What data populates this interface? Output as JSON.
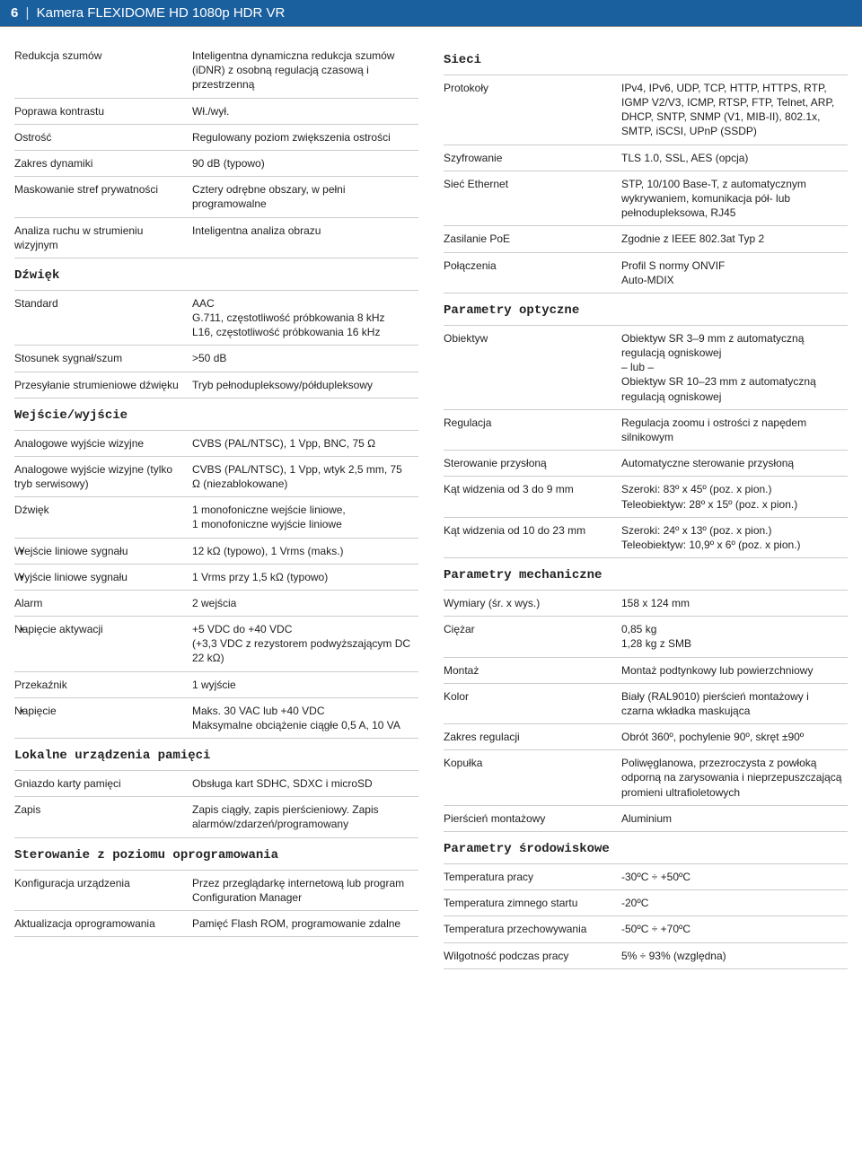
{
  "header": {
    "page": "6",
    "title": "Kamera FLEXIDOME HD 1080p HDR VR"
  },
  "left": {
    "rows1": [
      {
        "k": "Redukcja szumów",
        "v": "Inteligentna dynamiczna redukcja szumów (iDNR) z osobną regulacją czasową i przestrzenną"
      },
      {
        "k": "Poprawa kontrastu",
        "v": "Wł./wył."
      },
      {
        "k": "Ostrość",
        "v": "Regulowany poziom zwiększenia ostrości"
      },
      {
        "k": "Zakres dynamiki",
        "v": "90 dB (typowo)"
      },
      {
        "k": "Maskowanie stref prywatności",
        "v": "Cztery odrębne obszary, w pełni programowalne"
      },
      {
        "k": "Analiza ruchu w strumieniu wizyjnym",
        "v": "Inteligentna analiza obrazu"
      }
    ],
    "audio_title": "Dźwięk",
    "rows_audio": [
      {
        "k": "Standard",
        "v": "AAC\nG.711, częstotliwość próbkowania 8 kHz\nL16, częstotliwość próbkowania 16 kHz"
      },
      {
        "k": "Stosunek sygnał/szum",
        "v": ">50 dB"
      },
      {
        "k": "Przesyłanie strumieniowe dźwięku",
        "v": "Tryb pełnodupleksowy/półdupleksowy"
      }
    ],
    "io_title": "Wejście/wyjście",
    "rows_io": [
      {
        "k": "Analogowe wyjście wizyjne",
        "v": "CVBS (PAL/NTSC), 1 Vpp, BNC, 75 Ω"
      },
      {
        "k": "Analogowe wyjście wizyjne (tylko tryb serwisowy)",
        "v": "CVBS (PAL/NTSC), 1 Vpp, wtyk 2,5 mm, 75 Ω (niezablokowane)"
      },
      {
        "k": "Dźwięk",
        "v": "1 monofoniczne wejście liniowe,\n1 monofoniczne wyjście liniowe"
      },
      {
        "k": "Wejście liniowe sygnału",
        "v": "12 kΩ (typowo), 1 Vrms (maks.)",
        "sub": true
      },
      {
        "k": "Wyjście liniowe sygnału",
        "v": "1 Vrms przy 1,5 kΩ (typowo)",
        "sub": true
      },
      {
        "k": "Alarm",
        "v": "2 wejścia"
      },
      {
        "k": "Napięcie aktywacji",
        "v": "+5 VDC do +40 VDC\n(+3,3 VDC z rezystorem podwyższającym DC 22 kΩ)",
        "sub": true
      },
      {
        "k": "Przekaźnik",
        "v": "1 wyjście"
      },
      {
        "k": "Napięcie",
        "v": "Maks. 30 VAC lub +40 VDC\nMaksymalne obciążenie ciągłe 0,5 A, 10 VA",
        "sub": true
      }
    ],
    "storage_title": "Lokalne urządzenia pamięci",
    "rows_storage": [
      {
        "k": "Gniazdo karty pamięci",
        "v": "Obsługa kart SDHC, SDXC i microSD"
      },
      {
        "k": "Zapis",
        "v": "Zapis ciągły, zapis pierścieniowy. Zapis alarmów/zdarzeń/programowany"
      }
    ],
    "sw_title": "Sterowanie z poziomu oprogramowania",
    "rows_sw": [
      {
        "k": "Konfiguracja urządzenia",
        "v": "Przez przeglądarkę internetową lub program Configuration Manager"
      },
      {
        "k": "Aktualizacja oprogramowania",
        "v": "Pamięć Flash ROM, programowanie zdalne"
      }
    ]
  },
  "right": {
    "net_title": "Sieci",
    "rows_net": [
      {
        "k": "Protokoły",
        "v": "IPv4, IPv6, UDP, TCP, HTTP, HTTPS, RTP, IGMP V2/V3, ICMP, RTSP, FTP, Telnet, ARP, DHCP, SNTP, SNMP (V1, MIB-II), 802.1x, SMTP, iSCSI, UPnP (SSDP)"
      },
      {
        "k": "Szyfrowanie",
        "v": "TLS 1.0, SSL, AES (opcja)"
      },
      {
        "k": "Sieć Ethernet",
        "v": "STP, 10/100 Base-T, z automatycznym wykrywaniem, komunikacja pół- lub pełnodupleksowa, RJ45"
      },
      {
        "k": "Zasilanie PoE",
        "v": "Zgodnie z IEEE 802.3at Typ 2"
      },
      {
        "k": "Połączenia",
        "v": "Profil S normy ONVIF\nAuto-MDIX"
      }
    ],
    "opt_title": "Parametry optyczne",
    "rows_opt": [
      {
        "k": "Obiektyw",
        "v": "Obiektyw SR 3–9 mm z automatyczną regulacją ogniskowej\n– lub –\nObiektyw SR 10–23 mm z automatyczną regulacją ogniskowej"
      },
      {
        "k": "Regulacja",
        "v": "Regulacja zoomu i ostrości z napędem silnikowym"
      },
      {
        "k": "Sterowanie przysłoną",
        "v": "Automatyczne sterowanie przysłoną"
      },
      {
        "k": "Kąt widzenia od 3 do 9 mm",
        "v": "Szeroki: 83º x 45º (poz. x pion.)\nTeleobiektyw: 28º x 15º (poz. x pion.)"
      },
      {
        "k": "Kąt widzenia od 10 do 23 mm",
        "v": "Szeroki: 24º x 13º (poz. x pion.)\nTeleobiektyw: 10,9º x 6º (poz. x pion.)"
      }
    ],
    "mech_title": "Parametry mechaniczne",
    "rows_mech": [
      {
        "k": "Wymiary (śr. x wys.)",
        "v": "158 x 124 mm"
      },
      {
        "k": "Ciężar",
        "v": "0,85 kg\n1,28 kg z SMB"
      },
      {
        "k": "Montaż",
        "v": "Montaż podtynkowy lub powierzchniowy"
      },
      {
        "k": "Kolor",
        "v": "Biały (RAL9010) pierścień montażowy i czarna wkładka maskująca"
      },
      {
        "k": "Zakres regulacji",
        "v": "Obrót 360º, pochylenie 90º, skręt ±90º"
      },
      {
        "k": "Kopułka",
        "v": "Poliwęglanowa, przezroczysta z powłoką odporną na zarysowania i nieprzepuszczającą promieni ultrafioletowych"
      },
      {
        "k": "Pierścień montażowy",
        "v": "Aluminium"
      }
    ],
    "env_title": "Parametry środowiskowe",
    "rows_env": [
      {
        "k": "Temperatura pracy",
        "v": "-30ºC ÷ +50ºC"
      },
      {
        "k": "Temperatura zimnego startu",
        "v": "-20ºC"
      },
      {
        "k": "Temperatura przechowywania",
        "v": "-50ºC ÷ +70ºC"
      },
      {
        "k": "Wilgotność podczas pracy",
        "v": "5% ÷ 93% (względna)"
      }
    ]
  }
}
